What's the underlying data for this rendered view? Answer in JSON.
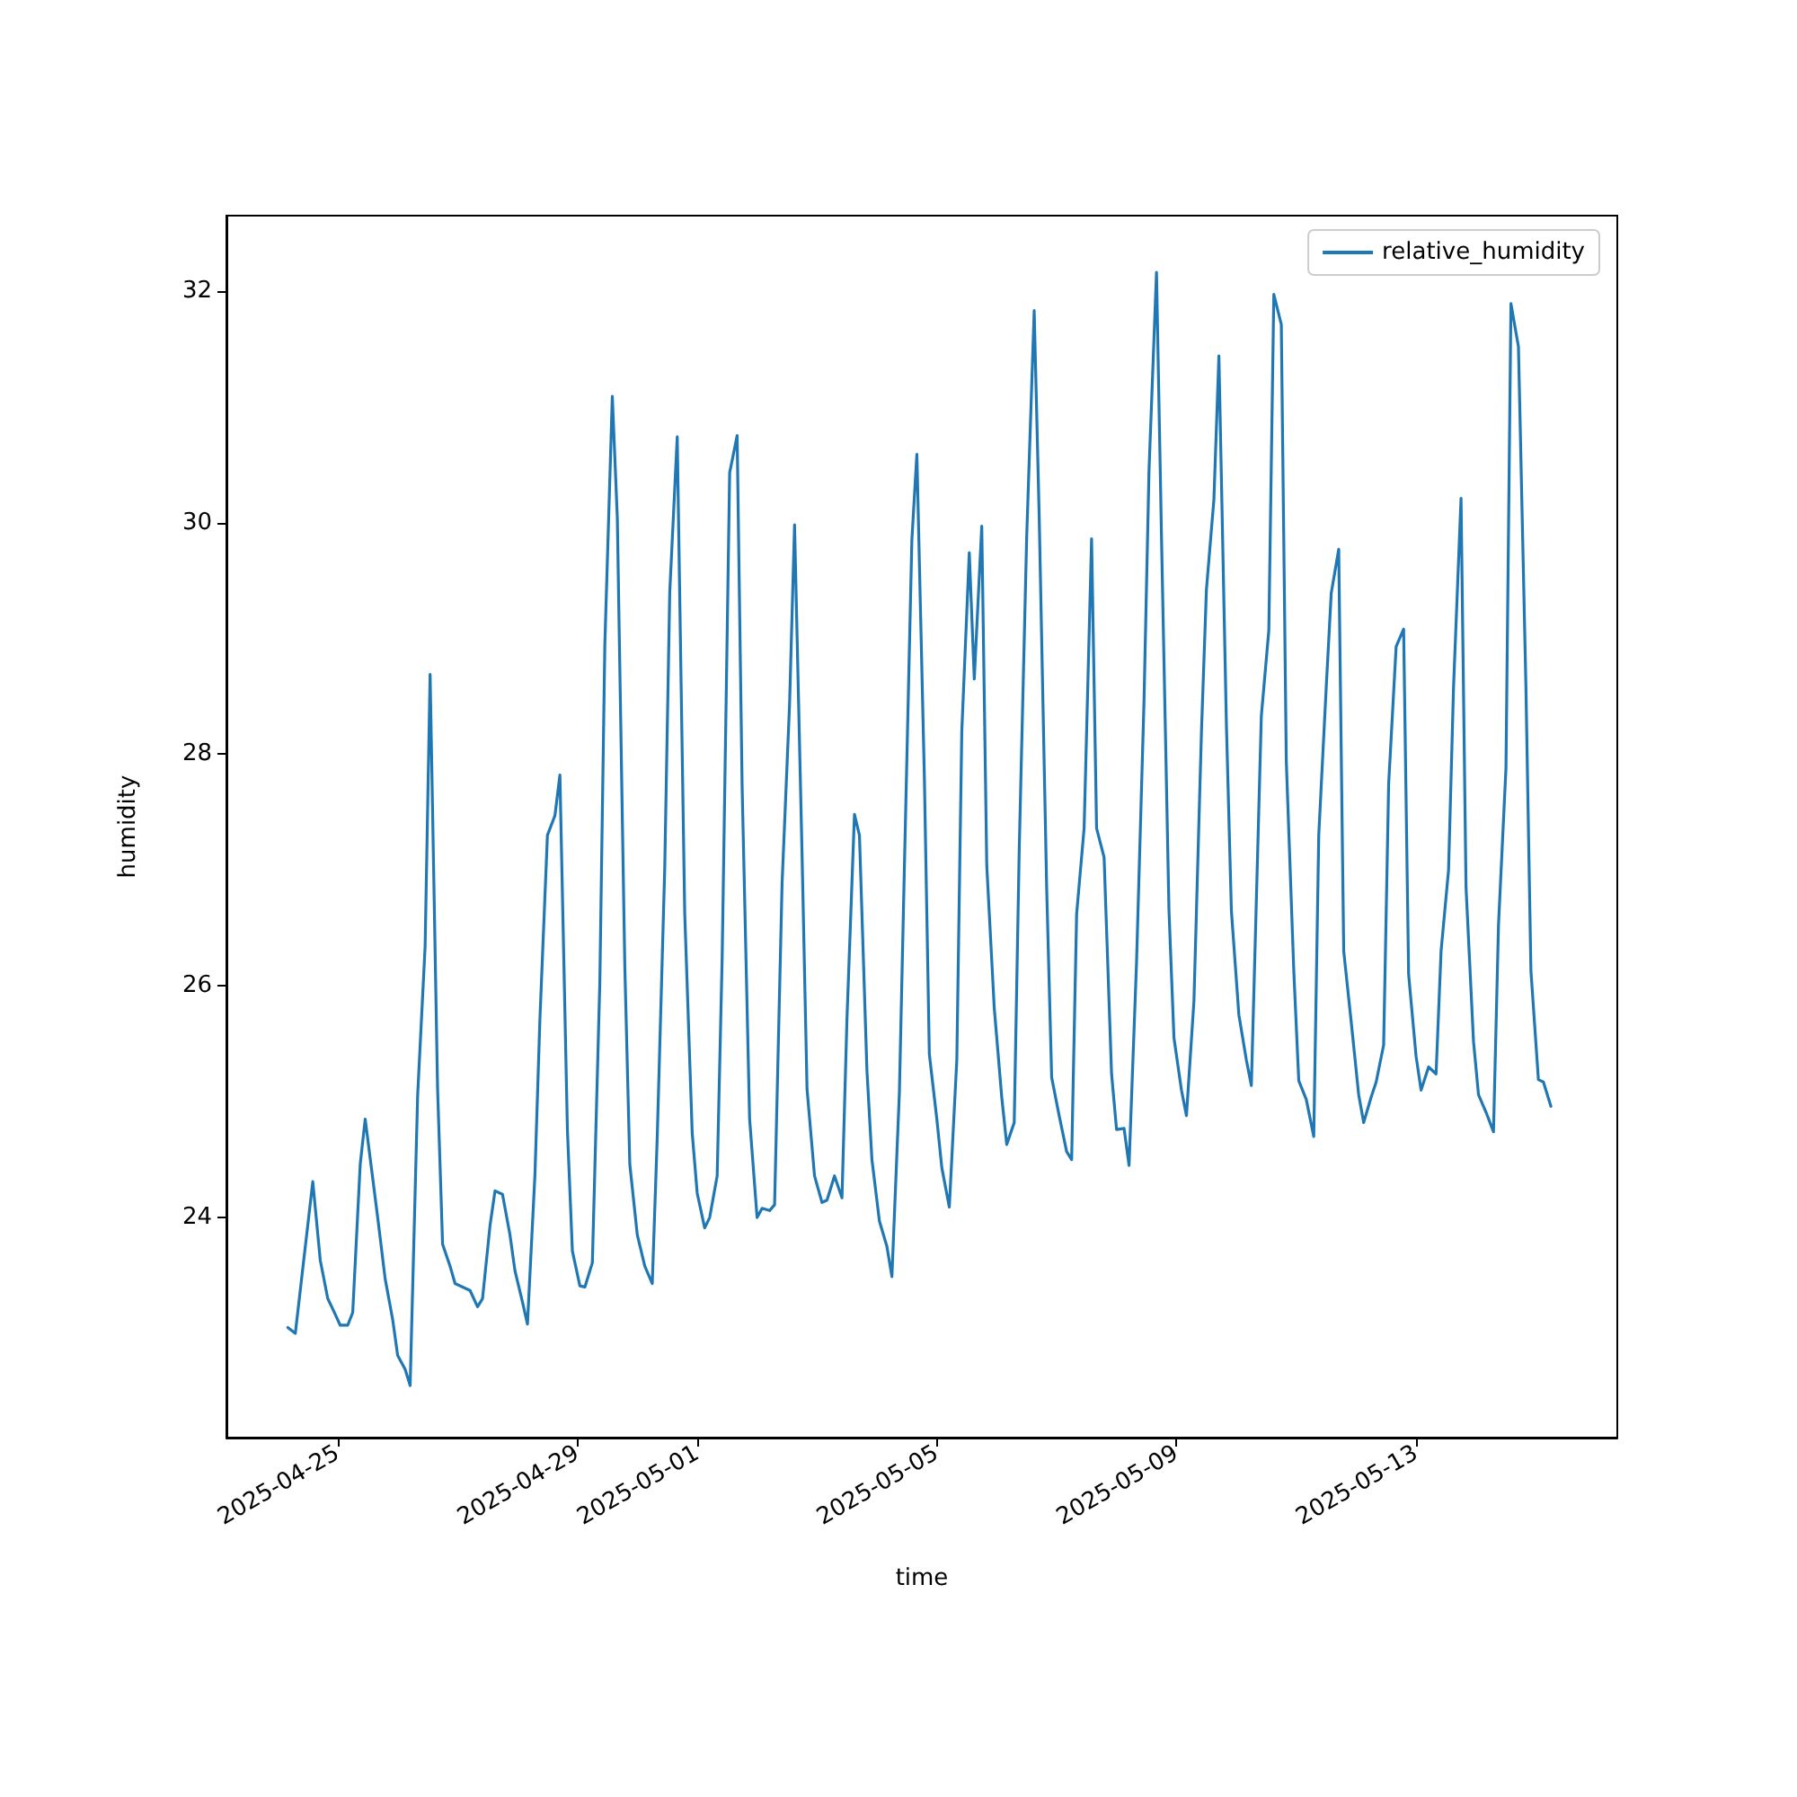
{
  "chart_data": {
    "type": "line",
    "xlabel": "time",
    "ylabel": "humidity",
    "legend": "top right",
    "grid": false,
    "marker": "none",
    "line_style": "solid",
    "xlim": [
      "2025-04-23T03:24",
      "2025-05-16T08:36"
    ],
    "xticks": [
      "2025-04-25",
      "2025-04-29",
      "2025-05-01",
      "2025-05-05",
      "2025-05-09",
      "2025-05-13"
    ],
    "ylim": [
      22.1,
      32.65
    ],
    "yticks": [
      24,
      26,
      28,
      30,
      32
    ],
    "series": [
      {
        "name": "relative_humidity",
        "color": "#1f77b4",
        "x": [
          "2025-04-24T04:00",
          "2025-04-24T07:00",
          "2025-04-24T14:00",
          "2025-04-24T17:00",
          "2025-04-24T20:00",
          "2025-04-24T22:00",
          "2025-04-25T01:00",
          "2025-04-25T04:00",
          "2025-04-25T06:00",
          "2025-04-25T09:00",
          "2025-04-25T11:00",
          "2025-04-25T14:00",
          "2025-04-25T16:00",
          "2025-04-25T19:00",
          "2025-04-25T22:00",
          "2025-04-26T00:00",
          "2025-04-26T03:00",
          "2025-04-26T05:00",
          "2025-04-26T08:00",
          "2025-04-26T11:00",
          "2025-04-26T13:00",
          "2025-04-26T16:00",
          "2025-04-26T18:00",
          "2025-04-26T21:00",
          "2025-04-26T23:00",
          "2025-04-27T05:00",
          "2025-04-27T08:00",
          "2025-04-27T10:00",
          "2025-04-27T13:00",
          "2025-04-27T15:00",
          "2025-04-27T18:00",
          "2025-04-27T21:00",
          "2025-04-27T23:00",
          "2025-04-28T02:00",
          "2025-04-28T04:00",
          "2025-04-28T07:00",
          "2025-04-28T09:00",
          "2025-04-28T12:00",
          "2025-04-28T15:00",
          "2025-04-28T17:00",
          "2025-04-28T20:00",
          "2025-04-28T22:00",
          "2025-04-29T01:00",
          "2025-04-29T03:00",
          "2025-04-29T06:00",
          "2025-04-29T09:00",
          "2025-04-29T11:00",
          "2025-04-29T14:00",
          "2025-04-29T16:00",
          "2025-04-29T19:00",
          "2025-04-29T21:00",
          "2025-04-30T00:00",
          "2025-04-30T03:00",
          "2025-04-30T06:00",
          "2025-04-30T08:00",
          "2025-04-30T11:00",
          "2025-04-30T13:00",
          "2025-04-30T16:00",
          "2025-04-30T19:00",
          "2025-04-30T22:00",
          "2025-05-01T00:00",
          "2025-05-01T03:00",
          "2025-05-01T05:00",
          "2025-05-01T08:00",
          "2025-05-01T10:00",
          "2025-05-01T13:00",
          "2025-05-01T16:00",
          "2025-05-01T18:00",
          "2025-05-01T21:00",
          "2025-05-02T00:00",
          "2025-05-02T02:00",
          "2025-05-02T05:00",
          "2025-05-02T07:00",
          "2025-05-02T10:00",
          "2025-05-02T13:00",
          "2025-05-02T15:00",
          "2025-05-02T18:00",
          "2025-05-02T20:00",
          "2025-05-02T23:00",
          "2025-05-03T02:00",
          "2025-05-03T04:00",
          "2025-05-03T07:00",
          "2025-05-03T10:00",
          "2025-05-03T12:00",
          "2025-05-03T15:00",
          "2025-05-03T17:00",
          "2025-05-03T20:00",
          "2025-05-03T22:00",
          "2025-05-04T01:00",
          "2025-05-04T04:00",
          "2025-05-04T06:00",
          "2025-05-04T09:00",
          "2025-05-04T11:00",
          "2025-05-04T14:00",
          "2025-05-04T16:00",
          "2025-05-04T19:00",
          "2025-05-04T21:00",
          "2025-05-05T00:00",
          "2025-05-05T02:00",
          "2025-05-05T05:00",
          "2025-05-05T08:00",
          "2025-05-05T10:00",
          "2025-05-05T13:00",
          "2025-05-05T15:00",
          "2025-05-05T18:00",
          "2025-05-05T20:00",
          "2025-05-05T23:00",
          "2025-05-06T02:00",
          "2025-05-06T04:00",
          "2025-05-06T07:00",
          "2025-05-06T09:00",
          "2025-05-06T12:00",
          "2025-05-06T15:00",
          "2025-05-06T17:00",
          "2025-05-06T20:00",
          "2025-05-06T22:00",
          "2025-05-07T01:00",
          "2025-05-07T04:00",
          "2025-05-07T06:00",
          "2025-05-07T08:00",
          "2025-05-07T11:00",
          "2025-05-07T14:00",
          "2025-05-07T16:00",
          "2025-05-07T19:00",
          "2025-05-07T22:00",
          "2025-05-08T00:00",
          "2025-05-08T03:00",
          "2025-05-08T05:00",
          "2025-05-08T08:00",
          "2025-05-08T11:00",
          "2025-05-08T13:00",
          "2025-05-08T16:00",
          "2025-05-08T18:00",
          "2025-05-08T21:00",
          "2025-05-08T23:00",
          "2025-05-09T02:00",
          "2025-05-09T04:00",
          "2025-05-09T07:00",
          "2025-05-09T10:00",
          "2025-05-09T12:00",
          "2025-05-09T15:00",
          "2025-05-09T17:00",
          "2025-05-09T20:00",
          "2025-05-09T22:00",
          "2025-05-10T01:00",
          "2025-05-10T04:00",
          "2025-05-10T06:00",
          "2025-05-10T10:00",
          "2025-05-10T13:00",
          "2025-05-10T15:00",
          "2025-05-10T18:00",
          "2025-05-10T20:00",
          "2025-05-10T23:00",
          "2025-05-11T01:00",
          "2025-05-11T04:00",
          "2025-05-11T07:00",
          "2025-05-11T09:00",
          "2025-05-11T12:00",
          "2025-05-11T14:00",
          "2025-05-11T17:00",
          "2025-05-11T19:00",
          "2025-05-11T22:00",
          "2025-05-12T01:00",
          "2025-05-12T03:00",
          "2025-05-12T06:00",
          "2025-05-12T08:00",
          "2025-05-12T11:00",
          "2025-05-12T13:00",
          "2025-05-12T16:00",
          "2025-05-12T19:00",
          "2025-05-12T21:00",
          "2025-05-13T00:00",
          "2025-05-13T02:00",
          "2025-05-13T05:00",
          "2025-05-13T08:00",
          "2025-05-13T10:00",
          "2025-05-13T13:00",
          "2025-05-13T15:00",
          "2025-05-13T18:00",
          "2025-05-13T20:00",
          "2025-05-13T23:00",
          "2025-05-14T01:00",
          "2025-05-14T04:00",
          "2025-05-14T07:00",
          "2025-05-14T09:00",
          "2025-05-14T12:00",
          "2025-05-14T14:00",
          "2025-05-14T17:00",
          "2025-05-14T20:00",
          "2025-05-14T22:00",
          "2025-05-15T01:00",
          "2025-05-15T03:00",
          "2025-05-15T06:00"
        ],
        "values": [
          23.05,
          23.0,
          24.31,
          23.63,
          23.3,
          23.21,
          23.07,
          23.07,
          23.18,
          24.46,
          24.85,
          24.34,
          24.0,
          23.47,
          23.12,
          22.81,
          22.69,
          22.55,
          25.05,
          26.34,
          28.69,
          25.11,
          23.77,
          23.58,
          23.43,
          23.37,
          23.23,
          23.3,
          23.93,
          24.23,
          24.2,
          23.85,
          23.54,
          23.27,
          23.08,
          24.37,
          25.72,
          27.3,
          27.47,
          27.82,
          24.76,
          23.71,
          23.41,
          23.4,
          23.61,
          26.04,
          28.95,
          31.09,
          30.04,
          26.17,
          24.46,
          23.85,
          23.58,
          23.43,
          24.7,
          27.02,
          29.4,
          30.74,
          26.63,
          24.73,
          24.21,
          23.91,
          24.0,
          24.36,
          26.24,
          30.43,
          30.75,
          27.72,
          24.85,
          24.0,
          24.08,
          24.06,
          24.11,
          26.88,
          28.43,
          29.98,
          27.14,
          25.11,
          24.36,
          24.13,
          24.15,
          24.36,
          24.17,
          25.72,
          27.48,
          27.3,
          25.27,
          24.5,
          23.97,
          23.75,
          23.49,
          25.08,
          27.02,
          29.85,
          30.59,
          27.81,
          25.41,
          24.85,
          24.43,
          24.09,
          25.36,
          28.2,
          29.74,
          28.65,
          29.97,
          27.04,
          25.81,
          25.04,
          24.63,
          24.82,
          27.17,
          29.88,
          31.83,
          30.06,
          26.85,
          25.21,
          24.88,
          24.57,
          24.5,
          26.62,
          27.36,
          29.86,
          27.36,
          27.11,
          25.24,
          24.76,
          24.77,
          24.45,
          26.2,
          28.46,
          30.45,
          32.16,
          29.88,
          26.65,
          25.55,
          25.1,
          24.88,
          25.87,
          28.19,
          29.42,
          30.2,
          31.44,
          28.26,
          26.65,
          25.75,
          25.36,
          25.14,
          28.33,
          29.07,
          31.97,
          31.71,
          27.94,
          26.13,
          25.18,
          25.02,
          24.7,
          27.3,
          28.58,
          29.39,
          29.77,
          26.3,
          25.69,
          25.06,
          24.82,
          25.04,
          25.17,
          25.49,
          27.74,
          28.93,
          29.08,
          26.1,
          25.39,
          25.1,
          25.3,
          25.24,
          26.3,
          27.0,
          28.58,
          30.21,
          26.85,
          25.52,
          25.06,
          24.91,
          24.74,
          26.52,
          27.88,
          31.89,
          31.52,
          28.58,
          26.13,
          25.19,
          25.17,
          24.96
        ]
      }
    ]
  }
}
